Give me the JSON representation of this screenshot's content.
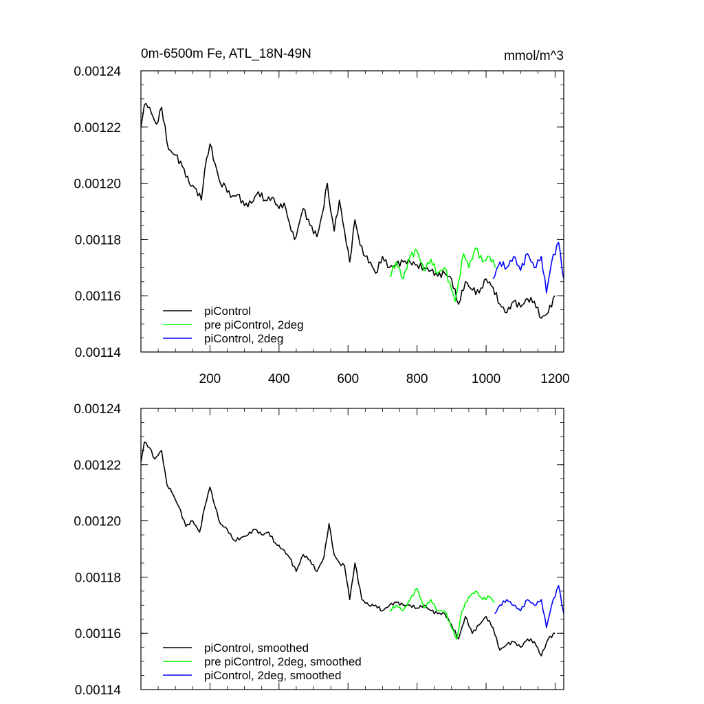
{
  "chart_data": [
    {
      "type": "line",
      "title": "0m-6500m Fe, ATL_18N-49N",
      "units": "mmol/m^3",
      "xlim": [
        0,
        1225
      ],
      "ylim": [
        0.00114,
        0.00124
      ],
      "x_ticks": [
        200,
        400,
        600,
        800,
        1000,
        1200
      ],
      "x_tick_labels": [
        "200",
        "400",
        "600",
        "800",
        "1000",
        "1200"
      ],
      "y_ticks": [
        0.00114,
        0.00116,
        0.00118,
        0.0012,
        0.00122,
        0.00124
      ],
      "y_tick_labels": [
        "0.00114",
        "0.00116",
        "0.00118",
        "0.00120",
        "0.00122",
        "0.00124"
      ],
      "legend_position": "bottom-left",
      "series": [
        {
          "name": "piControl",
          "color": "#000000",
          "x": [
            0,
            10,
            20,
            30,
            45,
            60,
            80,
            100,
            120,
            140,
            160,
            175,
            185,
            200,
            215,
            230,
            245,
            260,
            280,
            300,
            320,
            340,
            360,
            380,
            400,
            415,
            430,
            445,
            455,
            470,
            490,
            510,
            525,
            540,
            550,
            560,
            575,
            590,
            605,
            620,
            635,
            650,
            665,
            680,
            700,
            720,
            740,
            760,
            780,
            800,
            820,
            840,
            860,
            880,
            900,
            920,
            940,
            960,
            980,
            1000,
            1020,
            1040,
            1060,
            1080,
            1100,
            1120,
            1140,
            1160,
            1180,
            1200
          ],
          "y": [
            0.00122,
            0.001228,
            0.001227,
            0.001225,
            0.001221,
            0.001227,
            0.001212,
            0.00121,
            0.001206,
            0.0012,
            0.001198,
            0.001194,
            0.001205,
            0.001214,
            0.001207,
            0.0012,
            0.001199,
            0.001195,
            0.001196,
            0.001192,
            0.001193,
            0.001197,
            0.001194,
            0.001195,
            0.001191,
            0.001193,
            0.001186,
            0.00118,
            0.001184,
            0.001191,
            0.001185,
            0.001181,
            0.001189,
            0.0012,
            0.00119,
            0.001183,
            0.001194,
            0.001183,
            0.001172,
            0.001187,
            0.001178,
            0.001174,
            0.001172,
            0.001168,
            0.001174,
            0.00117,
            0.001171,
            0.001172,
            0.001172,
            0.001171,
            0.00117,
            0.001169,
            0.001167,
            0.001168,
            0.001166,
            0.001157,
            0.001165,
            0.001162,
            0.001161,
            0.001166,
            0.001163,
            0.001157,
            0.001154,
            0.001158,
            0.001156,
            0.001159,
            0.001158,
            0.001152,
            0.001154,
            0.00116
          ]
        },
        {
          "name": "pre piControl, 2deg",
          "color": "#00ff00",
          "x": [
            720,
            740,
            760,
            780,
            800,
            820,
            840,
            860,
            880,
            900,
            910,
            920,
            935,
            950,
            970,
            990,
            1010,
            1030
          ],
          "y": [
            0.001167,
            0.001172,
            0.001166,
            0.001174,
            0.001176,
            0.001169,
            0.001173,
            0.001168,
            0.00117,
            0.001162,
            0.001158,
            0.001165,
            0.001175,
            0.00117,
            0.001177,
            0.001172,
            0.001174,
            0.00117
          ]
        },
        {
          "name": "piControl, 2deg",
          "color": "#0000ff",
          "x": [
            1020,
            1040,
            1060,
            1080,
            1100,
            1120,
            1140,
            1160,
            1175,
            1190,
            1210,
            1225
          ],
          "y": [
            0.001166,
            0.001172,
            0.00117,
            0.001174,
            0.001169,
            0.001175,
            0.00117,
            0.001174,
            0.001161,
            0.001172,
            0.001179,
            0.001166
          ]
        }
      ]
    },
    {
      "type": "line",
      "title": "",
      "xlim": [
        0,
        1225
      ],
      "ylim": [
        0.00114,
        0.00124
      ],
      "y_ticks": [
        0.00114,
        0.00116,
        0.00118,
        0.0012,
        0.00122,
        0.00124
      ],
      "y_tick_labels": [
        "0.00114",
        "0.00116",
        "0.00118",
        "0.00120",
        "0.00122",
        "0.00124"
      ],
      "legend_position": "bottom-left",
      "series": [
        {
          "name": "piControl, smoothed",
          "color": "#000000",
          "x": [
            0,
            10,
            25,
            40,
            60,
            75,
            90,
            110,
            130,
            150,
            170,
            185,
            200,
            215,
            230,
            250,
            270,
            290,
            310,
            330,
            350,
            370,
            390,
            410,
            430,
            450,
            470,
            490,
            510,
            530,
            545,
            560,
            575,
            590,
            605,
            620,
            640,
            660,
            680,
            700,
            720,
            740,
            760,
            780,
            800,
            820,
            840,
            860,
            880,
            900,
            920,
            940,
            960,
            980,
            1000,
            1020,
            1040,
            1060,
            1080,
            1100,
            1120,
            1140,
            1160,
            1180,
            1200
          ],
          "y": [
            0.001221,
            0.001228,
            0.001226,
            0.001222,
            0.001225,
            0.001213,
            0.00121,
            0.001205,
            0.001198,
            0.0012,
            0.001196,
            0.001205,
            0.001212,
            0.001205,
            0.001199,
            0.001197,
            0.001193,
            0.001194,
            0.001195,
            0.001197,
            0.001195,
            0.001196,
            0.001192,
            0.00119,
            0.001187,
            0.001182,
            0.001188,
            0.001186,
            0.001182,
            0.001187,
            0.001199,
            0.001188,
            0.001185,
            0.001184,
            0.001172,
            0.001185,
            0.001172,
            0.00117,
            0.00117,
            0.001168,
            0.00117,
            0.001171,
            0.00117,
            0.00117,
            0.001169,
            0.00117,
            0.001168,
            0.001167,
            0.001167,
            0.001163,
            0.001158,
            0.001166,
            0.00116,
            0.001163,
            0.001166,
            0.001162,
            0.001154,
            0.001156,
            0.001157,
            0.001155,
            0.001158,
            0.001157,
            0.001152,
            0.001158,
            0.00116
          ]
        },
        {
          "name": "pre piControl, 2deg, smoothed",
          "color": "#00ff00",
          "x": [
            720,
            740,
            760,
            780,
            800,
            820,
            840,
            860,
            880,
            900,
            915,
            930,
            950,
            970,
            990,
            1010,
            1025
          ],
          "y": [
            0.001168,
            0.00117,
            0.001168,
            0.001172,
            0.001176,
            0.001169,
            0.001172,
            0.001168,
            0.001168,
            0.001162,
            0.001158,
            0.001168,
            0.001173,
            0.001175,
            0.001172,
            0.001173,
            0.001171
          ]
        },
        {
          "name": "piControl, 2deg, smoothed",
          "color": "#0000ff",
          "x": [
            1025,
            1040,
            1060,
            1080,
            1100,
            1120,
            1140,
            1160,
            1175,
            1190,
            1210,
            1225
          ],
          "y": [
            0.001167,
            0.00117,
            0.001172,
            0.00117,
            0.001168,
            0.001172,
            0.00117,
            0.001172,
            0.001162,
            0.00117,
            0.001177,
            0.001167
          ]
        }
      ]
    }
  ]
}
